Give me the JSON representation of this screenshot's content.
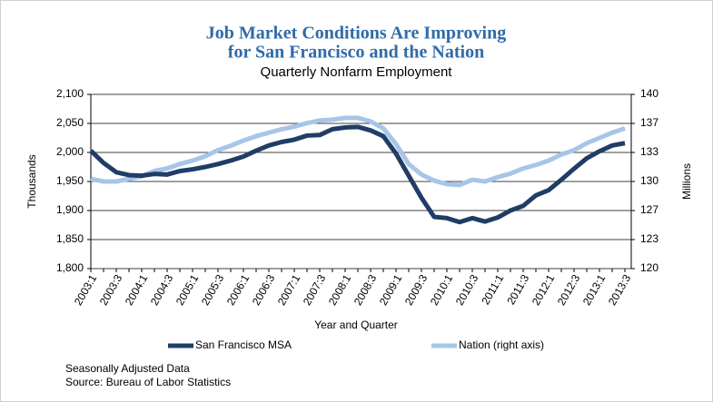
{
  "chart_data": {
    "type": "line",
    "title": [
      "Job Market Conditions Are Improving",
      "for San Francisco and the Nation"
    ],
    "subtitle": "Quarterly Nonfarm Employment",
    "x_label": "Year and Quarter",
    "y_label": "Thousands",
    "y2_label": "Millions",
    "notes": [
      "Seasonally Adjusted Data",
      "Source: Bureau of Labor  Statistics"
    ],
    "categories": [
      "2003:1",
      null,
      "2003:3",
      null,
      "2004:1",
      null,
      "2004:3",
      null,
      "2005:1",
      null,
      "2005:3",
      null,
      "2006:1",
      null,
      "2006:3",
      null,
      "2007:1",
      null,
      "2007:3",
      null,
      "2008:1",
      null,
      "2008:3",
      null,
      "2009:1",
      null,
      "2009:3",
      null,
      "2010:1",
      null,
      "2010:3",
      null,
      "2011:1",
      null,
      "2011:3",
      null,
      "2012:1",
      null,
      "2012:3",
      null,
      "2013:1",
      null,
      "2013:3"
    ],
    "series": [
      {
        "name": "San Francisco MSA",
        "color": "#1f3d66",
        "values": [
          2003,
          1982,
          1966,
          1961,
          1960,
          1963,
          1962,
          1968,
          1971,
          1975,
          1980,
          1986,
          1993,
          2003,
          2012,
          2018,
          2022,
          2029,
          2030,
          2040,
          2043,
          2044,
          2038,
          2028,
          1998,
          1960,
          1922,
          1889,
          1887,
          1880,
          1887,
          1881,
          1888,
          1900,
          1908,
          1926,
          1935,
          1953,
          1972,
          1990,
          2002,
          2012,
          2016
        ]
      },
      {
        "name": "Nation (right axis)",
        "color": "#a7c5e8",
        "axis": "y2",
        "values": [
          130.3,
          130.0,
          130.0,
          130.3,
          130.6,
          131.2,
          131.5,
          132.0,
          132.4,
          132.9,
          133.6,
          134.1,
          134.7,
          135.2,
          135.6,
          136.0,
          136.3,
          136.7,
          137.0,
          137.1,
          137.3,
          137.3,
          136.9,
          136.1,
          134.3,
          132.0,
          130.8,
          130.1,
          129.7,
          129.6,
          130.2,
          130.0,
          130.5,
          130.9,
          131.5,
          131.9,
          132.4,
          133.1,
          133.6,
          134.4,
          135.0,
          135.6,
          136.1
        ]
      }
    ],
    "ylim": [
      1800,
      2100
    ],
    "yticks": [
      {
        "value": 1800,
        "label": "1,800"
      },
      {
        "value": 1850,
        "label": "1,850"
      },
      {
        "value": 1900,
        "label": "1,900"
      },
      {
        "value": 1950,
        "label": "1,950"
      },
      {
        "value": 2000,
        "label": "2,000"
      },
      {
        "value": 2050,
        "label": "2,050"
      },
      {
        "value": 2100,
        "label": "2,100"
      }
    ],
    "y2lim": [
      120,
      140
    ],
    "y2ticks": [
      120,
      {
        "value": 123.333,
        "label": "123"
      },
      {
        "value": 126.667,
        "label": "127"
      },
      130,
      {
        "value": 133.333,
        "label": "133"
      },
      {
        "value": 136.667,
        "label": "137"
      },
      140
    ],
    "grid": true
  }
}
